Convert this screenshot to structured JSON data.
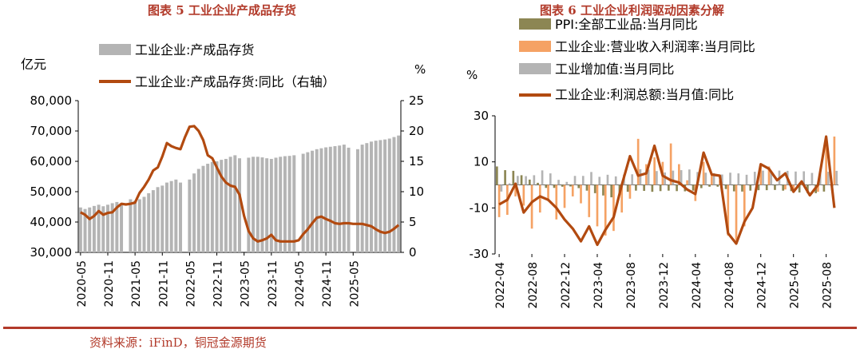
{
  "chart_data": [
    {
      "type": "bar",
      "title": "图表 5  工业企业产成品存货",
      "left_axis_unit": "亿元",
      "right_axis_unit": "%",
      "left_ylim": [
        30000,
        80000
      ],
      "left_ticks": [
        "30,000",
        "40,000",
        "50,000",
        "60,000",
        "70,000",
        "80,000"
      ],
      "right_ylim": [
        0,
        25
      ],
      "right_ticks": [
        "0",
        "5",
        "10",
        "15",
        "20",
        "25"
      ],
      "x_tick_labels": [
        "2020-05",
        "2020-11",
        "2021-05",
        "2021-11",
        "2022-05",
        "2022-11",
        "2023-05",
        "2023-11",
        "2024-05",
        "2024-11",
        "2025-05"
      ],
      "legend_position": "top",
      "series": [
        {
          "name": "工业企业:产成品存货",
          "kind": "bar",
          "axis": "left",
          "color": "#b4b4b4",
          "values": [
            44800,
            44300,
            44800,
            45300,
            45700,
            45200,
            45700,
            46200,
            46600,
            46200,
            null,
            47500,
            47000,
            47500,
            48300,
            49500,
            50500,
            51500,
            52000,
            53000,
            53500,
            54000,
            53000,
            null,
            54000,
            56000,
            57500,
            58500,
            59200,
            59800,
            60000,
            60500,
            60800,
            61500,
            62000,
            61000,
            null,
            61200,
            61500,
            61500,
            61300,
            61000,
            60800,
            61200,
            61500,
            61700,
            61800,
            62000,
            null,
            62500,
            63000,
            63500,
            64000,
            64300,
            64600,
            64800,
            65000,
            65200,
            65500,
            64500,
            null,
            64000,
            65500,
            66000,
            66500,
            66800,
            67000,
            67200,
            67500,
            68000,
            68500
          ]
        },
        {
          "name": "工业企业:产成品存货:同比（右轴）",
          "kind": "line",
          "axis": "right",
          "color": "#b24a10",
          "values": [
            6.6,
            6.2,
            5.5,
            6.0,
            6.8,
            6.2,
            6.5,
            6.6,
            7.4,
            8.0,
            7.9,
            8.0,
            8.2,
            9.8,
            10.8,
            12.0,
            13.5,
            14.0,
            15.8,
            18.0,
            17.5,
            17.2,
            17.0,
            19.0,
            20.7,
            20.8,
            20.0,
            18.5,
            16.0,
            15.5,
            14.0,
            12.5,
            11.5,
            11.0,
            10.8,
            9.5,
            6.0,
            3.5,
            2.3,
            1.8,
            2.0,
            2.3,
            2.9,
            2.0,
            1.8,
            1.8,
            1.8,
            1.8,
            2.0,
            3.0,
            3.8,
            4.8,
            5.7,
            5.9,
            5.5,
            5.2,
            4.8,
            4.7,
            4.8,
            4.8,
            4.7,
            4.7,
            4.7,
            4.5,
            4.3,
            3.8,
            3.4,
            3.2,
            3.4,
            3.9,
            4.5
          ]
        }
      ]
    },
    {
      "type": "bar",
      "title": "图表 6  工业企业利润驱动因素分解",
      "y_unit": "%",
      "ylim": [
        -30,
        30
      ],
      "y_ticks": [
        "-30",
        "-10",
        "10",
        "30"
      ],
      "x_tick_labels": [
        "2022-04",
        "2022-08",
        "2022-12",
        "2023-04",
        "2023-08",
        "2023-12",
        "2024-04",
        "2024-08",
        "2024-12",
        "2025-04",
        "2025-08"
      ],
      "legend_position": "top",
      "series": [
        {
          "name": "PPI:全部工业品:当月同比",
          "kind": "bar",
          "color": "#8c8653",
          "values": [
            8.0,
            6.4,
            6.1,
            4.2,
            2.3,
            0.9,
            -1.3,
            -1.3,
            -0.8,
            -0.7,
            -1.4,
            -2.5,
            -3.6,
            -4.6,
            -5.4,
            -4.4,
            -3.0,
            -2.5,
            -2.6,
            -3.0,
            -2.7,
            -2.5,
            -2.7,
            -2.8,
            -2.5,
            -1.4,
            -0.8,
            -0.8,
            -1.8,
            -2.8,
            -2.9,
            -2.5,
            -2.3,
            -2.3,
            -2.2,
            -2.5,
            -2.7,
            -3.3,
            -3.6,
            -3.6,
            -2.9,
            -2.2
          ]
        },
        {
          "name": "工业企业:营业收入利润率:当月同比",
          "kind": "bar",
          "color": "#f5a264",
          "values": [
            -14.0,
            -13.0,
            -5.0,
            -9.0,
            -19.0,
            -12.0,
            -7.0,
            -15.0,
            -10.0,
            -5.0,
            -8.0,
            -14.0,
            -18.0,
            -22.0,
            -20.0,
            -12.0,
            -6.0,
            20.0,
            9.0,
            12.0,
            10.0,
            18.0,
            9.0,
            2.0,
            -7.0,
            10.0,
            5.0,
            2.0,
            -22.0,
            -24.0,
            -18.0,
            0.0,
            9.0,
            8.0,
            0.0,
            -2.0,
            -3.0,
            1.0,
            0.0,
            -3.0,
            20.0,
            21.0
          ]
        },
        {
          "name": "工业增加值:当月同比",
          "kind": "bar",
          "color": "#b4b4b4",
          "values": [
            -2.9,
            0.7,
            3.9,
            3.8,
            4.2,
            6.3,
            5.0,
            2.2,
            1.3,
            3.9,
            3.9,
            5.6,
            3.5,
            4.4,
            3.7,
            4.5,
            4.6,
            6.8,
            6.6,
            6.0,
            5.4,
            6.2,
            6.4,
            6.7,
            5.6,
            5.3,
            5.1,
            4.5,
            5.3,
            5.0,
            4.4,
            5.7,
            6.2,
            5.4,
            6.2,
            6.1,
            5.8,
            5.9,
            5.2,
            5.6,
            5.7,
            6.1
          ]
        },
        {
          "name": "工业企业:利润总额:当月值:同比",
          "kind": "line",
          "color": "#b24a10",
          "values": [
            -8.5,
            -6.5,
            0.5,
            -12.0,
            -7.5,
            -5.0,
            -6.5,
            -10.0,
            -15.0,
            -19.0,
            -24.5,
            -18.0,
            -26.0,
            -19.5,
            -14.0,
            0.0,
            12.5,
            4.0,
            5.0,
            17.0,
            4.0,
            2.0,
            1.0,
            -2.0,
            -4.0,
            14.0,
            4.5,
            4.0,
            -21.0,
            -25.5,
            -16.0,
            -10.0,
            9.0,
            7.0,
            2.0,
            5.0,
            -3.0,
            1.5,
            -4.5,
            0.0,
            21.0,
            -10.0
          ]
        }
      ]
    }
  ],
  "source_note": "资料来源：iFinD，铜冠金源期货"
}
